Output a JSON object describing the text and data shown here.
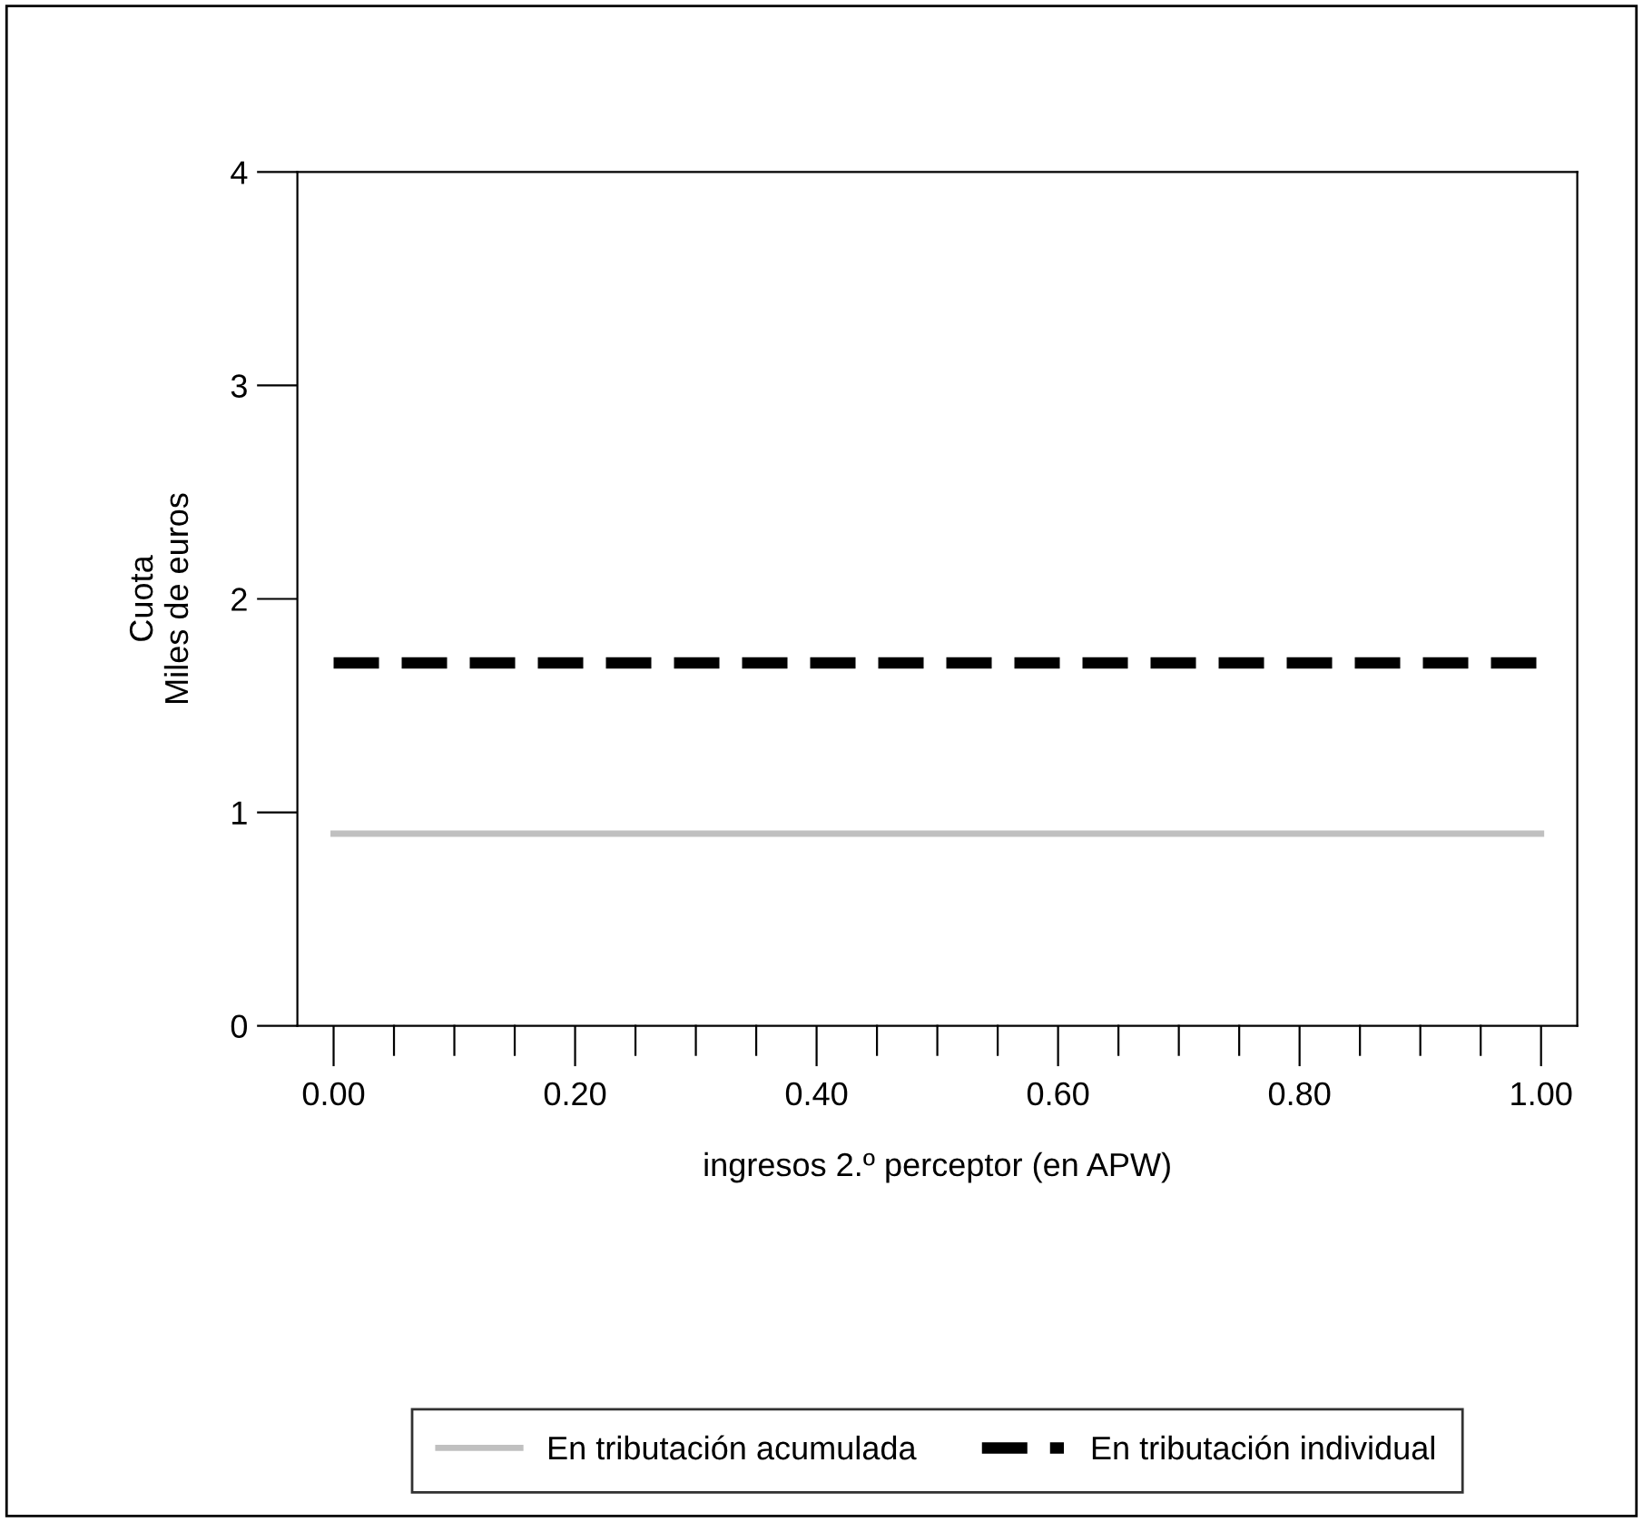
{
  "chart_data": {
    "type": "line",
    "xlabel": "ingresos 2.º perceptor (en APW)",
    "ylabel": "Cuota\nMiles de euros",
    "x": [
      0,
      1
    ],
    "series": [
      {
        "name": "En tributación acumulada",
        "color": "#c0c0c0",
        "values": [
          0.9,
          0.9
        ],
        "line_style": "solid"
      },
      {
        "name": "En tributación individual",
        "color": "#000000",
        "values": [
          1.7,
          1.7
        ],
        "line_style": "dashed"
      }
    ],
    "xlim": [
      -0.03,
      1.03
    ],
    "xticks": [
      {
        "value": 0,
        "label": "0.00"
      },
      {
        "value": 0.05,
        "label": null
      },
      {
        "value": 0.1,
        "label": null
      },
      {
        "value": 0.15,
        "label": null
      },
      {
        "value": 0.2,
        "label": "0.20"
      },
      {
        "value": 0.25,
        "label": null
      },
      {
        "value": 0.3,
        "label": null
      },
      {
        "value": 0.35,
        "label": null
      },
      {
        "value": 0.4,
        "label": "0.40"
      },
      {
        "value": 0.45,
        "label": null
      },
      {
        "value": 0.5,
        "label": null
      },
      {
        "value": 0.55,
        "label": null
      },
      {
        "value": 0.6,
        "label": "0.60"
      },
      {
        "value": 0.65,
        "label": null
      },
      {
        "value": 0.7,
        "label": null
      },
      {
        "value": 0.75,
        "label": null
      },
      {
        "value": 0.8,
        "label": "0.80"
      },
      {
        "value": 0.85,
        "label": null
      },
      {
        "value": 0.9,
        "label": null
      },
      {
        "value": 0.95,
        "label": null
      },
      {
        "value": 1,
        "label": "1.00"
      }
    ],
    "ylim": [
      0,
      4
    ],
    "yticks": [
      0,
      1,
      2,
      3,
      4
    ],
    "grid": false,
    "legend": "bottom",
    "marker": "none"
  }
}
